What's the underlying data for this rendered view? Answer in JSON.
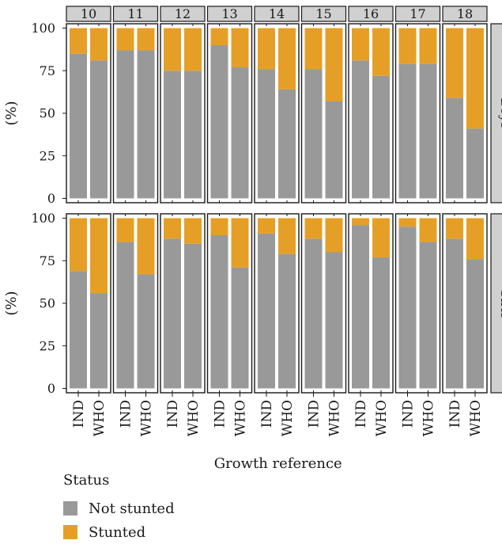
{
  "chart_data": {
    "type": "bar",
    "stacked": true,
    "facet_columns": [
      "10",
      "11",
      "12",
      "13",
      "14",
      "15",
      "16",
      "17",
      "18"
    ],
    "facet_rows": [
      "Boys",
      "Girls"
    ],
    "categories": [
      "IND",
      "WHO"
    ],
    "ylabel": "(%)",
    "xlabel": "Growth reference",
    "yticks": [
      0,
      25,
      50,
      75,
      100
    ],
    "ylim": [
      0,
      100
    ],
    "legend": {
      "title": "Status",
      "placement": "bottom",
      "entries": [
        {
          "name": "Not stunted",
          "color": "#999999"
        },
        {
          "name": "Stunted",
          "color": "#E69F26"
        }
      ]
    },
    "series": [
      {
        "name": "Not stunted",
        "values": {
          "Boys": [
            [
              85,
              81
            ],
            [
              87,
              87
            ],
            [
              75,
              75
            ],
            [
              90,
              77
            ],
            [
              76,
              64
            ],
            [
              76,
              57
            ],
            [
              81,
              72
            ],
            [
              79,
              79
            ],
            [
              59,
              41
            ]
          ],
          "Girls": [
            [
              69,
              56
            ],
            [
              86,
              67
            ],
            [
              88,
              85
            ],
            [
              90,
              71
            ],
            [
              91,
              79
            ],
            [
              88,
              80
            ],
            [
              96,
              77
            ],
            [
              95,
              86
            ],
            [
              88,
              76
            ]
          ]
        }
      },
      {
        "name": "Stunted",
        "values": {
          "Boys": [
            [
              15,
              19
            ],
            [
              13,
              13
            ],
            [
              25,
              25
            ],
            [
              10,
              23
            ],
            [
              24,
              36
            ],
            [
              24,
              43
            ],
            [
              19,
              28
            ],
            [
              21,
              21
            ],
            [
              41,
              59
            ]
          ],
          "Girls": [
            [
              31,
              44
            ],
            [
              14,
              33
            ],
            [
              12,
              15
            ],
            [
              10,
              29
            ],
            [
              9,
              21
            ],
            [
              12,
              20
            ],
            [
              4,
              23
            ],
            [
              5,
              14
            ],
            [
              12,
              24
            ]
          ]
        }
      }
    ]
  }
}
